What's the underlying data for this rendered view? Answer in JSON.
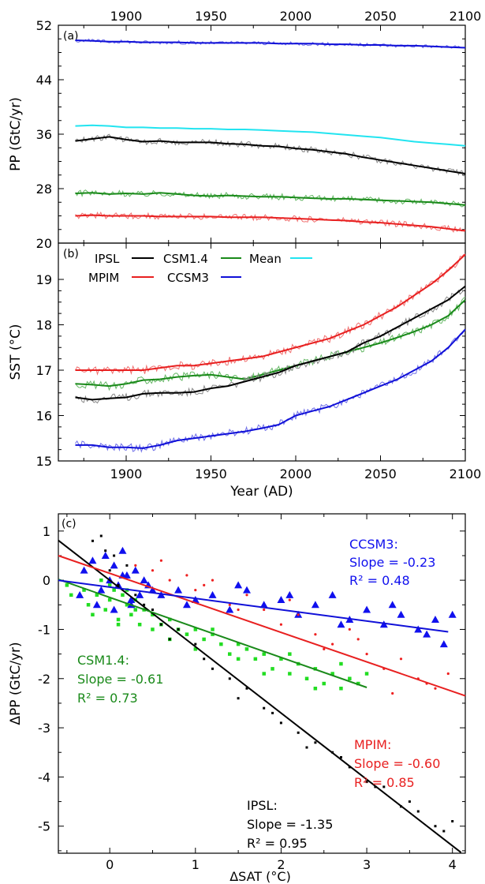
{
  "colors": {
    "IPSL": "#000000",
    "CSM1.4": "#1a8a1a",
    "MPIM": "#e82020",
    "CCSM3": "#1010d8",
    "Mean": "#22e4f0",
    "IPSL_light": "#888888",
    "CSM1.4_light": "#66b866",
    "MPIM_light": "#f07070",
    "CCSM3_light": "#7070e8",
    "scatter_CSM1.4": "#22dd22",
    "scatter_CCSM3": "#1010ee",
    "scatter_MPIM": "#ee2020",
    "scatter_IPSL": "#000000"
  },
  "chart_data": [
    {
      "type": "line",
      "panel_label": "(a)",
      "title": "",
      "xlabel": "",
      "ylabel": "PP (GtC/yr)",
      "xlim": [
        1860,
        2100
      ],
      "ylim": [
        20,
        52
      ],
      "xticks": [
        1900,
        1950,
        2000,
        2050,
        2100
      ],
      "yticks": [
        20,
        28,
        36,
        44,
        52
      ],
      "x_axis_position": "top",
      "x": [
        1870,
        1880,
        1890,
        1900,
        1910,
        1920,
        1930,
        1940,
        1950,
        1960,
        1970,
        1980,
        1990,
        2000,
        2010,
        2020,
        2030,
        2040,
        2050,
        2060,
        2070,
        2080,
        2090,
        2100
      ],
      "series": [
        {
          "name": "CCSM3",
          "values": [
            49.8,
            49.7,
            49.6,
            49.6,
            49.5,
            49.5,
            49.5,
            49.4,
            49.4,
            49.4,
            49.4,
            49.4,
            49.3,
            49.3,
            49.3,
            49.2,
            49.2,
            49.1,
            49.1,
            49.0,
            49.0,
            48.9,
            48.8,
            48.7
          ]
        },
        {
          "name": "Mean",
          "values": [
            37.2,
            37.3,
            37.2,
            37.0,
            37.0,
            36.9,
            36.9,
            36.8,
            36.8,
            36.7,
            36.7,
            36.6,
            36.5,
            36.4,
            36.3,
            36.1,
            35.9,
            35.7,
            35.5,
            35.2,
            34.9,
            34.7,
            34.5,
            34.3
          ]
        },
        {
          "name": "IPSL",
          "values": [
            35.0,
            35.3,
            35.6,
            35.2,
            34.9,
            35.0,
            34.8,
            34.8,
            34.8,
            34.6,
            34.5,
            34.3,
            34.2,
            33.9,
            33.7,
            33.4,
            33.1,
            32.6,
            32.2,
            31.8,
            31.4,
            31.0,
            30.6,
            30.2
          ]
        },
        {
          "name": "CSM1.4",
          "values": [
            27.3,
            27.4,
            27.2,
            27.3,
            27.2,
            27.4,
            27.2,
            27.0,
            26.9,
            27.0,
            26.9,
            26.8,
            26.8,
            26.7,
            26.6,
            26.5,
            26.5,
            26.4,
            26.3,
            26.2,
            26.1,
            26.0,
            25.8,
            25.6
          ]
        },
        {
          "name": "MPIM",
          "values": [
            24.0,
            24.1,
            24.0,
            24.0,
            24.0,
            23.9,
            23.9,
            23.9,
            23.9,
            23.8,
            23.8,
            23.8,
            23.7,
            23.6,
            23.5,
            23.4,
            23.3,
            23.1,
            23.0,
            22.8,
            22.6,
            22.4,
            22.1,
            21.8
          ]
        }
      ]
    },
    {
      "type": "line",
      "panel_label": "(b)",
      "title": "",
      "xlabel": "Year (AD)",
      "ylabel": "SST (°C)",
      "xlim": [
        1860,
        2100
      ],
      "ylim": [
        15,
        19.8
      ],
      "xticks": [
        1900,
        1950,
        2000,
        2050,
        2100
      ],
      "yticks": [
        15,
        16,
        17,
        18,
        19
      ],
      "legend_position": "top-left",
      "legend_entries": [
        "IPSL",
        "CSM1.4",
        "Mean",
        "MPIM",
        "CCSM3"
      ],
      "x": [
        1870,
        1880,
        1890,
        1900,
        1910,
        1920,
        1930,
        1940,
        1950,
        1960,
        1970,
        1980,
        1990,
        2000,
        2010,
        2020,
        2030,
        2040,
        2050,
        2060,
        2070,
        2080,
        2090,
        2100
      ],
      "series": [
        {
          "name": "MPIM",
          "values": [
            17.0,
            17.0,
            17.0,
            17.0,
            17.0,
            17.05,
            17.1,
            17.1,
            17.15,
            17.2,
            17.25,
            17.3,
            17.4,
            17.5,
            17.6,
            17.7,
            17.85,
            18.0,
            18.2,
            18.4,
            18.65,
            18.9,
            19.2,
            19.55
          ]
        },
        {
          "name": "CSM1.4",
          "values": [
            16.7,
            16.68,
            16.65,
            16.7,
            16.78,
            16.8,
            16.85,
            16.88,
            16.9,
            16.85,
            16.8,
            16.9,
            17.0,
            17.1,
            17.2,
            17.3,
            17.4,
            17.5,
            17.6,
            17.72,
            17.85,
            18.0,
            18.2,
            18.55
          ]
        },
        {
          "name": "IPSL",
          "values": [
            16.4,
            16.35,
            16.38,
            16.4,
            16.48,
            16.5,
            16.5,
            16.52,
            16.6,
            16.65,
            16.75,
            16.85,
            16.95,
            17.1,
            17.2,
            17.3,
            17.4,
            17.6,
            17.75,
            17.95,
            18.15,
            18.35,
            18.55,
            18.85
          ]
        },
        {
          "name": "CCSM3",
          "values": [
            15.35,
            15.35,
            15.3,
            15.3,
            15.28,
            15.35,
            15.45,
            15.5,
            15.55,
            15.6,
            15.65,
            15.72,
            15.8,
            16.0,
            16.1,
            16.2,
            16.35,
            16.5,
            16.65,
            16.8,
            17.0,
            17.2,
            17.5,
            17.9
          ]
        }
      ]
    },
    {
      "type": "scatter",
      "panel_label": "(c)",
      "title": "",
      "xlabel": "ΔSAT (°C)",
      "ylabel": "ΔPP (GtC/yr)",
      "xlim": [
        -0.6,
        4.15
      ],
      "ylim": [
        -5.55,
        1.35
      ],
      "xticks": [
        0,
        1,
        2,
        3,
        4
      ],
      "yticks": [
        -5,
        -4,
        -3,
        -2,
        -1,
        0,
        1
      ],
      "regressions": [
        {
          "name": "IPSL",
          "slope": -1.35,
          "intercept": 0.0,
          "x_range": [
            -0.6,
            4.1
          ]
        },
        {
          "name": "MPIM",
          "slope": -0.6,
          "intercept": 0.14,
          "x_range": [
            -0.6,
            4.15
          ]
        },
        {
          "name": "CSM1.4",
          "slope": -0.61,
          "intercept": -0.35,
          "x_range": [
            -0.6,
            3.0
          ]
        },
        {
          "name": "CCSM3",
          "slope": -0.23,
          "intercept": -0.14,
          "x_range": [
            -0.6,
            3.95
          ]
        }
      ],
      "annotations": [
        {
          "name": "CCSM3",
          "lines": [
            "CCSM3:",
            "Slope = -0.23",
            "R² = 0.48"
          ]
        },
        {
          "name": "CSM1.4",
          "lines": [
            "CSM1.4:",
            "Slope = -0.61",
            "R² = 0.73"
          ]
        },
        {
          "name": "MPIM",
          "lines": [
            "MPIM:",
            "Slope = -0.60",
            "R² = 0.85"
          ]
        },
        {
          "name": "IPSL",
          "lines": [
            "IPSL:",
            "Slope = -1.35",
            "R² = 0.95"
          ]
        }
      ],
      "series": [
        {
          "name": "CSM1.4",
          "marker": "square",
          "x": [
            -0.5,
            -0.45,
            -0.3,
            -0.25,
            -0.15,
            -0.1,
            -0.05,
            0.0,
            0.05,
            0.1,
            0.15,
            0.2,
            0.25,
            0.3,
            0.35,
            0.4,
            0.5,
            0.6,
            0.7,
            0.8,
            0.9,
            1.0,
            1.1,
            1.2,
            1.3,
            1.4,
            1.5,
            1.6,
            1.7,
            1.8,
            1.9,
            2.0,
            2.1,
            2.2,
            2.3,
            2.4,
            2.5,
            2.6,
            2.7,
            2.8,
            2.9,
            3.0,
            -0.2,
            0.0,
            0.1,
            0.2,
            0.3,
            0.5,
            0.7,
            1.0,
            1.2,
            1.5,
            1.8,
            2.1,
            2.4,
            2.7
          ],
          "y": [
            -0.1,
            -0.3,
            -0.2,
            -0.5,
            -0.3,
            0.0,
            -0.6,
            -0.4,
            -0.2,
            -0.8,
            -0.3,
            -0.5,
            -0.7,
            -0.4,
            -0.9,
            -0.6,
            -0.7,
            -0.9,
            -0.8,
            -1.0,
            -1.1,
            -1.0,
            -1.2,
            -1.1,
            -1.3,
            -1.5,
            -1.3,
            -1.4,
            -1.6,
            -1.5,
            -1.8,
            -1.6,
            -1.9,
            -1.7,
            -2.0,
            -1.8,
            -2.1,
            -1.9,
            -2.2,
            -2.0,
            -2.1,
            -1.9,
            -0.7,
            -0.1,
            -0.9,
            -0.2,
            -0.6,
            -1.0,
            -1.2,
            -1.4,
            -1.0,
            -1.6,
            -1.9,
            -1.5,
            -2.2,
            -1.7
          ]
        },
        {
          "name": "CCSM3",
          "marker": "triangle",
          "x": [
            -0.35,
            -0.3,
            -0.2,
            -0.1,
            -0.05,
            0.0,
            0.05,
            0.1,
            0.15,
            0.2,
            0.25,
            0.3,
            0.35,
            0.4,
            0.5,
            0.6,
            0.8,
            1.0,
            1.2,
            1.4,
            1.6,
            1.8,
            2.0,
            2.2,
            2.4,
            2.6,
            2.8,
            3.0,
            3.2,
            3.4,
            3.6,
            3.8,
            3.9,
            4.0,
            -0.15,
            0.05,
            0.15,
            0.25,
            0.45,
            0.9,
            1.5,
            2.1,
            2.7,
            3.3,
            3.7
          ],
          "y": [
            -0.3,
            0.2,
            0.4,
            -0.2,
            0.5,
            0.0,
            0.3,
            -0.1,
            0.6,
            0.1,
            -0.4,
            0.2,
            -0.3,
            0.0,
            -0.2,
            -0.3,
            -0.2,
            -0.4,
            -0.3,
            -0.6,
            -0.2,
            -0.5,
            -0.4,
            -0.7,
            -0.5,
            -0.3,
            -0.8,
            -0.6,
            -0.9,
            -0.7,
            -1.0,
            -0.8,
            -1.3,
            -0.7,
            -0.5,
            -0.6,
            0.1,
            -0.5,
            -0.1,
            -0.5,
            -0.1,
            -0.3,
            -0.9,
            -0.5,
            -1.1
          ]
        },
        {
          "name": "MPIM",
          "marker": "dot",
          "x": [
            0.3,
            0.5,
            0.7,
            0.9,
            1.0,
            1.2,
            1.4,
            1.6,
            1.8,
            2.0,
            2.2,
            2.4,
            2.6,
            2.8,
            3.0,
            3.2,
            3.4,
            3.6,
            3.8,
            3.95,
            0.6,
            1.1,
            1.5,
            2.1,
            2.5,
            2.9,
            3.3,
            3.7
          ],
          "y": [
            0.3,
            0.2,
            0.0,
            0.1,
            -0.2,
            0.0,
            -0.5,
            -0.3,
            -0.6,
            -0.9,
            -0.7,
            -1.1,
            -1.3,
            -1.0,
            -1.5,
            -1.8,
            -1.6,
            -2.0,
            -2.2,
            -1.9,
            0.4,
            -0.1,
            -0.6,
            -0.4,
            -1.4,
            -1.2,
            -2.3,
            -2.1
          ]
        },
        {
          "name": "IPSL",
          "marker": "square",
          "x": [
            -0.2,
            -0.1,
            -0.05,
            0.0,
            0.05,
            0.1,
            0.2,
            0.3,
            0.4,
            0.5,
            0.6,
            0.8,
            1.0,
            1.2,
            1.4,
            1.6,
            1.8,
            2.0,
            2.2,
            2.4,
            2.6,
            2.8,
            3.0,
            3.2,
            3.4,
            3.6,
            3.8,
            3.9,
            4.0,
            0.7,
            1.1,
            1.5,
            1.9,
            2.3,
            2.7,
            3.1,
            3.5
          ],
          "y": [
            0.8,
            0.9,
            0.6,
            0.2,
            0.5,
            -0.1,
            0.3,
            -0.3,
            -0.5,
            -0.6,
            -0.9,
            -1.0,
            -1.3,
            -1.8,
            -2.0,
            -2.2,
            -2.6,
            -2.9,
            -3.1,
            -3.3,
            -3.5,
            -3.8,
            -4.1,
            -4.2,
            -4.6,
            -4.7,
            -5.0,
            -5.1,
            -4.9,
            -1.2,
            -1.6,
            -2.4,
            -2.7,
            -3.4,
            -3.6,
            -4.2,
            -4.5
          ]
        }
      ]
    }
  ]
}
